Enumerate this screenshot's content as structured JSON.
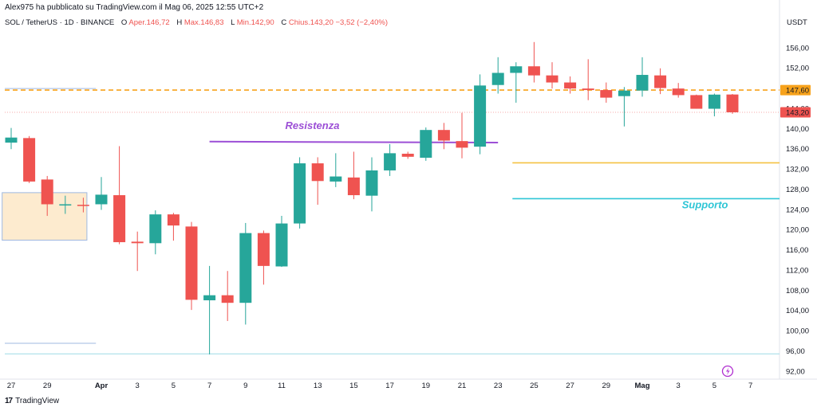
{
  "header": {
    "published": "Alex975 ha pubblicato su TradingView.com il Mag 06, 2025 12:55 UTC+2"
  },
  "legend": {
    "symbol": "SOL / TetherUS · 1D · BINANCE",
    "open_label": "O",
    "open": "Aper.146,72",
    "high_label": "H",
    "high": "Max.146,83",
    "low_label": "L",
    "low": "Min.142,90",
    "close_label": "C",
    "close": "Chius.143,20",
    "change": "−3,52 (−2,40%)"
  },
  "footer": {
    "brand": "TradingView",
    "logo": "17"
  },
  "colors": {
    "up": "#26a69a",
    "down": "#ef5350",
    "resistance": "#9c4fd6",
    "support": "#2fc6d6",
    "dashed": "#f7a21b",
    "gold": "#f5c242"
  },
  "chart_data": {
    "type": "candlestick",
    "y_unit": "USDT",
    "ylim": [
      90.4,
      158.8
    ],
    "y_ticks": [
      "156,00",
      "152,00",
      "148,00",
      "144,00",
      "140,00",
      "136,00",
      "132,00",
      "128,00",
      "124,00",
      "120,00",
      "116,00",
      "112,00",
      "108,00",
      "104,00",
      "100,00",
      "96,00",
      "92,00"
    ],
    "y_tick_values": [
      156,
      152,
      148,
      144,
      140,
      136,
      132,
      128,
      124,
      120,
      116,
      112,
      108,
      104,
      100,
      96,
      92
    ],
    "x_ticks": [
      {
        "label": "27",
        "i": 0
      },
      {
        "label": "29",
        "i": 2
      },
      {
        "label": "Apr",
        "i": 5
      },
      {
        "label": "3",
        "i": 7
      },
      {
        "label": "5",
        "i": 9
      },
      {
        "label": "7",
        "i": 11
      },
      {
        "label": "9",
        "i": 13
      },
      {
        "label": "11",
        "i": 15
      },
      {
        "label": "13",
        "i": 17
      },
      {
        "label": "15",
        "i": 19
      },
      {
        "label": "17",
        "i": 21
      },
      {
        "label": "19",
        "i": 23
      },
      {
        "label": "21",
        "i": 25
      },
      {
        "label": "23",
        "i": 27
      },
      {
        "label": "25",
        "i": 29
      },
      {
        "label": "27",
        "i": 31
      },
      {
        "label": "29",
        "i": 33
      },
      {
        "label": "Mag",
        "i": 35
      },
      {
        "label": "3",
        "i": 37
      },
      {
        "label": "5",
        "i": 39
      },
      {
        "label": "7",
        "i": 41
      }
    ],
    "candles": [
      {
        "d": "27",
        "o": 137.2,
        "h": 140.1,
        "l": 135.9,
        "c": 138.2
      },
      {
        "d": "28",
        "o": 138.1,
        "h": 138.5,
        "l": 129.2,
        "c": 129.5
      },
      {
        "d": "29",
        "o": 129.9,
        "h": 130.6,
        "l": 122.7,
        "c": 125.0
      },
      {
        "d": "30",
        "o": 124.9,
        "h": 126.7,
        "l": 123.1,
        "c": 125.0
      },
      {
        "d": "31",
        "o": 124.9,
        "h": 126.3,
        "l": 123.4,
        "c": 124.8
      },
      {
        "d": "Apr",
        "o": 125.0,
        "h": 130.4,
        "l": 123.9,
        "c": 126.9
      },
      {
        "d": "2",
        "o": 126.8,
        "h": 136.5,
        "l": 117.1,
        "c": 117.5
      },
      {
        "d": "3",
        "o": 117.6,
        "h": 119.6,
        "l": 111.8,
        "c": 117.3
      },
      {
        "d": "4",
        "o": 117.3,
        "h": 123.8,
        "l": 115.1,
        "c": 123.0
      },
      {
        "d": "5",
        "o": 123.0,
        "h": 123.3,
        "l": 117.8,
        "c": 120.8
      },
      {
        "d": "6",
        "o": 120.6,
        "h": 121.5,
        "l": 104.1,
        "c": 106.1
      },
      {
        "d": "7",
        "o": 106.0,
        "h": 112.8,
        "l": 95.3,
        "c": 107.0
      },
      {
        "d": "8",
        "o": 107.0,
        "h": 111.8,
        "l": 101.9,
        "c": 105.5
      },
      {
        "d": "9",
        "o": 105.5,
        "h": 121.3,
        "l": 101.2,
        "c": 119.3
      },
      {
        "d": "10",
        "o": 119.3,
        "h": 119.8,
        "l": 109.1,
        "c": 112.8
      },
      {
        "d": "11",
        "o": 112.7,
        "h": 122.7,
        "l": 112.6,
        "c": 121.2
      },
      {
        "d": "12",
        "o": 121.2,
        "h": 134.3,
        "l": 120.2,
        "c": 133.1
      },
      {
        "d": "13",
        "o": 133.1,
        "h": 134.3,
        "l": 124.9,
        "c": 129.6
      },
      {
        "d": "14",
        "o": 129.5,
        "h": 135.1,
        "l": 128.4,
        "c": 130.5
      },
      {
        "d": "15",
        "o": 130.3,
        "h": 135.4,
        "l": 126.0,
        "c": 126.8
      },
      {
        "d": "16",
        "o": 126.7,
        "h": 134.3,
        "l": 123.6,
        "c": 131.7
      },
      {
        "d": "17",
        "o": 131.7,
        "h": 136.9,
        "l": 130.6,
        "c": 135.1
      },
      {
        "d": "18",
        "o": 135.0,
        "h": 135.4,
        "l": 134.0,
        "c": 134.4
      },
      {
        "d": "19",
        "o": 134.2,
        "h": 140.2,
        "l": 133.6,
        "c": 139.7
      },
      {
        "d": "20",
        "o": 139.7,
        "h": 141.1,
        "l": 135.9,
        "c": 137.6
      },
      {
        "d": "21",
        "o": 137.5,
        "h": 143.1,
        "l": 134.1,
        "c": 136.2
      },
      {
        "d": "22",
        "o": 136.4,
        "h": 150.7,
        "l": 134.9,
        "c": 148.5
      },
      {
        "d": "23",
        "o": 148.6,
        "h": 154.1,
        "l": 146.9,
        "c": 151.0
      },
      {
        "d": "24",
        "o": 151.0,
        "h": 153.1,
        "l": 145.1,
        "c": 152.3
      },
      {
        "d": "25",
        "o": 152.3,
        "h": 157.1,
        "l": 149.1,
        "c": 150.5
      },
      {
        "d": "26",
        "o": 150.5,
        "h": 153.1,
        "l": 147.9,
        "c": 149.1
      },
      {
        "d": "27",
        "o": 149.1,
        "h": 150.3,
        "l": 146.9,
        "c": 147.9
      },
      {
        "d": "28",
        "o": 147.9,
        "h": 153.7,
        "l": 145.6,
        "c": 147.6
      },
      {
        "d": "29",
        "o": 147.6,
        "h": 149.1,
        "l": 145.1,
        "c": 146.1
      },
      {
        "d": "30",
        "o": 146.4,
        "h": 148.2,
        "l": 140.4,
        "c": 147.5
      },
      {
        "d": "Mag",
        "o": 147.5,
        "h": 154.1,
        "l": 146.3,
        "c": 150.6
      },
      {
        "d": "2",
        "o": 150.5,
        "h": 151.9,
        "l": 146.8,
        "c": 148.0
      },
      {
        "d": "3",
        "o": 147.9,
        "h": 149.0,
        "l": 146.1,
        "c": 146.6
      },
      {
        "d": "4",
        "o": 146.6,
        "h": 146.7,
        "l": 143.9,
        "c": 143.9
      },
      {
        "d": "5",
        "o": 143.9,
        "h": 146.9,
        "l": 142.4,
        "c": 146.7
      },
      {
        "d": "6",
        "o": 146.72,
        "h": 146.83,
        "l": 142.9,
        "c": 143.2
      }
    ],
    "price_labels": [
      {
        "text": "147,60",
        "value": 147.6,
        "color": "#f7a21b"
      },
      {
        "text": "144,00",
        "value": 144.0,
        "color": "#ffffff"
      },
      {
        "text": "143,20",
        "value": 143.2,
        "color": "#ef5350"
      }
    ],
    "annotations": {
      "resistance_label": "Resistenza",
      "support_label": "Supporto",
      "resistance": {
        "value": 137.4,
        "from_i": 11,
        "to_i": 27
      },
      "support": {
        "value": 126.1,
        "from_i": 28,
        "to_i": 44
      },
      "gold_line": {
        "value": 133.2,
        "from_i": 28,
        "to_i": 44
      },
      "dashed_line": {
        "value": 147.6
      },
      "box_top": {
        "value": 147.9
      },
      "box_bottom": {
        "value": 97.5
      },
      "shaded_zone": {
        "from_i": -0.2,
        "to_i": 4.2,
        "high": 127.3,
        "low": 117.9
      },
      "thin_line": {
        "value": 95.4
      }
    },
    "grid": false
  }
}
